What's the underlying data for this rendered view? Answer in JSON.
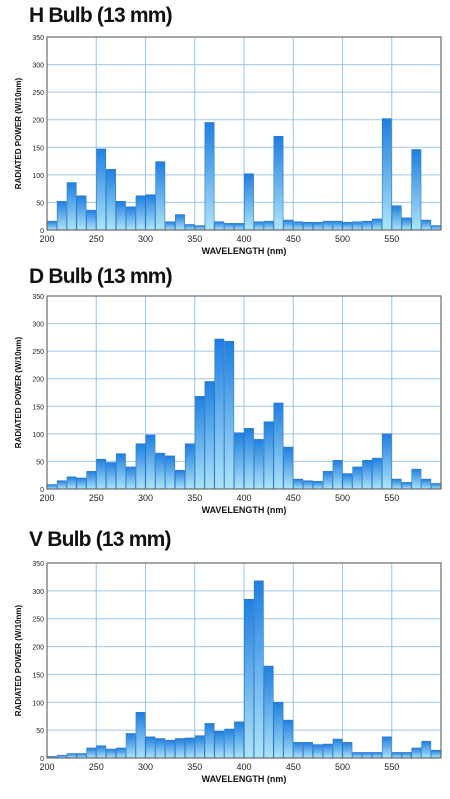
{
  "colors": {
    "bar_light": "#aee4f8",
    "bar_dark": "#1f7fe0",
    "bar_stroke": "#2a78c8",
    "grid": "#9cc7ea",
    "frame": "#6b6b6b"
  },
  "chart_data": [
    {
      "type": "bar",
      "title": "H Bulb (13 mm)",
      "xlabel": "WAVELENGTH (nm)",
      "ylabel": "RADIATED POWER (W/10nm)",
      "xlim": [
        200,
        600
      ],
      "ylim": [
        0,
        350
      ],
      "bin_width": 10,
      "grid": true,
      "xticks": [
        200,
        250,
        300,
        350,
        400,
        450,
        500,
        550
      ],
      "yticks": [
        0,
        50,
        100,
        150,
        200,
        250,
        300,
        350
      ],
      "x": [
        200,
        210,
        220,
        230,
        240,
        250,
        260,
        270,
        280,
        290,
        300,
        310,
        320,
        330,
        340,
        350,
        360,
        370,
        380,
        390,
        400,
        410,
        420,
        430,
        440,
        450,
        460,
        470,
        480,
        490,
        500,
        510,
        520,
        530,
        540,
        550,
        560,
        570,
        580,
        590
      ],
      "values": [
        16,
        52,
        86,
        62,
        36,
        147,
        110,
        52,
        42,
        62,
        64,
        124,
        15,
        28,
        10,
        8,
        195,
        15,
        12,
        12,
        102,
        15,
        16,
        170,
        18,
        15,
        14,
        14,
        16,
        16,
        14,
        15,
        16,
        20,
        202,
        44,
        22,
        146,
        18,
        8
      ]
    },
    {
      "type": "bar",
      "title": "D Bulb (13 mm)",
      "xlabel": "WAVELENGTH (nm)",
      "ylabel": "RADIATED POWER (W/10nm)",
      "xlim": [
        200,
        600
      ],
      "ylim": [
        0,
        350
      ],
      "bin_width": 10,
      "grid": true,
      "xticks": [
        200,
        250,
        300,
        350,
        400,
        450,
        500,
        550
      ],
      "yticks": [
        0,
        50,
        100,
        150,
        200,
        250,
        300,
        350
      ],
      "x": [
        200,
        210,
        220,
        230,
        240,
        250,
        260,
        270,
        280,
        290,
        300,
        310,
        320,
        330,
        340,
        350,
        360,
        370,
        380,
        390,
        400,
        410,
        420,
        430,
        440,
        450,
        460,
        470,
        480,
        490,
        500,
        510,
        520,
        530,
        540,
        550,
        560,
        570,
        580,
        590
      ],
      "values": [
        8,
        15,
        22,
        20,
        32,
        54,
        48,
        64,
        40,
        82,
        98,
        65,
        60,
        34,
        82,
        168,
        195,
        272,
        268,
        102,
        110,
        90,
        122,
        156,
        76,
        18,
        15,
        14,
        32,
        52,
        28,
        40,
        52,
        56,
        100,
        18,
        12,
        36,
        18,
        10
      ]
    },
    {
      "type": "bar",
      "title": "V Bulb (13 mm)",
      "xlabel": "WAVELENGTH (nm)",
      "ylabel": "RADIATED POWER (W/10nm)",
      "xlim": [
        200,
        600
      ],
      "ylim": [
        0,
        350
      ],
      "bin_width": 10,
      "grid": true,
      "xticks": [
        200,
        250,
        300,
        350,
        400,
        450,
        500,
        550
      ],
      "yticks": [
        0,
        50,
        100,
        150,
        200,
        250,
        300,
        350
      ],
      "x": [
        200,
        210,
        220,
        230,
        240,
        250,
        260,
        270,
        280,
        290,
        300,
        310,
        320,
        330,
        340,
        350,
        360,
        370,
        380,
        390,
        400,
        410,
        420,
        430,
        440,
        450,
        460,
        470,
        480,
        490,
        500,
        510,
        520,
        530,
        540,
        550,
        560,
        570,
        580,
        590
      ],
      "values": [
        3,
        5,
        8,
        8,
        18,
        22,
        16,
        18,
        44,
        82,
        38,
        35,
        32,
        35,
        36,
        40,
        62,
        48,
        52,
        65,
        285,
        318,
        165,
        100,
        68,
        28,
        28,
        24,
        25,
        34,
        28,
        10,
        10,
        10,
        38,
        10,
        10,
        18,
        30,
        14
      ]
    }
  ]
}
